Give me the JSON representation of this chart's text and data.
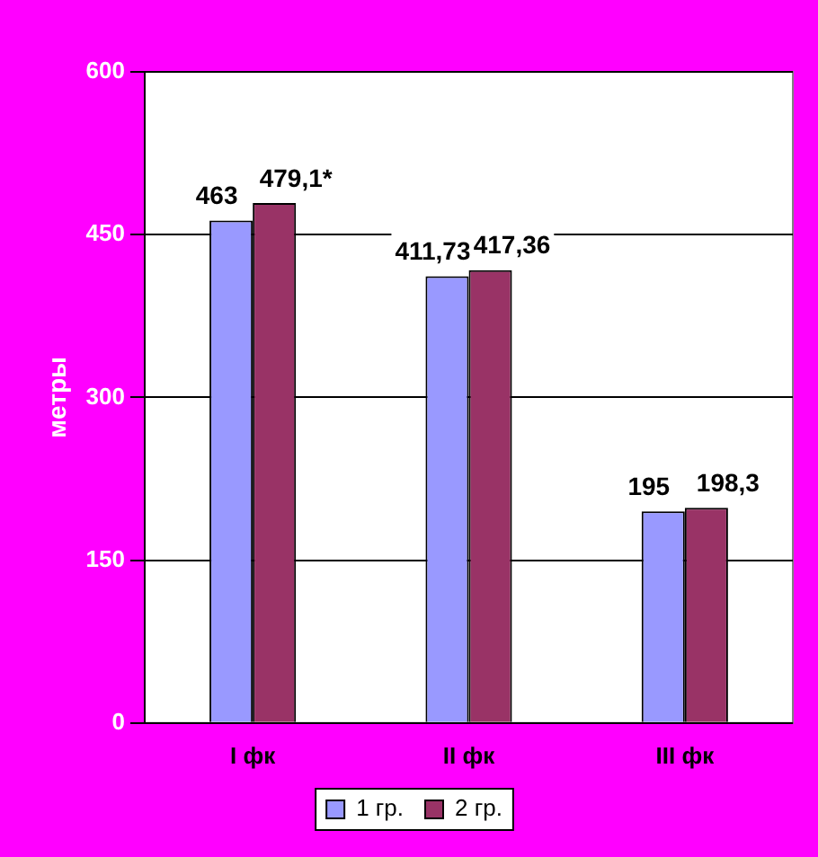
{
  "chart_data": {
    "type": "bar",
    "ylabel": "метры",
    "categories": [
      "I фк",
      "II фк",
      "III фк"
    ],
    "series": [
      {
        "name": "1 гр.",
        "color": "#9999ff",
        "values": [
          463,
          411.73,
          195
        ],
        "value_labels": [
          "463",
          "411,73",
          "195"
        ]
      },
      {
        "name": "2 гр.",
        "color": "#993366",
        "values": [
          479.1,
          417.36,
          198.3
        ],
        "value_labels": [
          "479,1*",
          "417,36",
          "198,3"
        ]
      }
    ],
    "ylim": [
      0,
      600
    ],
    "yticks": [
      0,
      150,
      300,
      450,
      600
    ],
    "grid": "y",
    "legend": "bottom"
  }
}
